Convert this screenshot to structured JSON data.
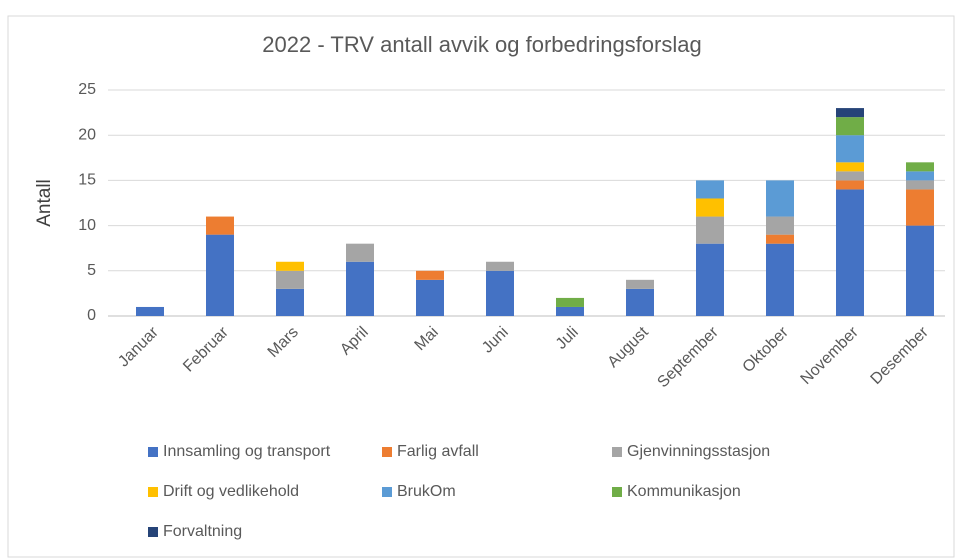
{
  "chart_data": {
    "type": "bar",
    "stacked": true,
    "title": "2022 - TRV antall avvik og forbedringsforslag",
    "y_label": "Antall",
    "categories": [
      "Januar",
      "Februar",
      "Mars",
      "April",
      "Mai",
      "Juni",
      "Juli",
      "August",
      "September",
      "Oktober",
      "November",
      "Desember"
    ],
    "series": [
      {
        "name": "Innsamling og transport",
        "color": "#4472c4",
        "values": [
          1,
          9,
          3,
          6,
          4,
          5,
          1,
          3,
          8,
          8,
          14,
          10
        ]
      },
      {
        "name": "Farlig avfall",
        "color": "#ed7d31",
        "values": [
          0,
          2,
          0,
          0,
          1,
          0,
          0,
          0,
          0,
          1,
          1,
          4
        ]
      },
      {
        "name": "Gjenvinningsstasjon",
        "color": "#a5a5a5",
        "values": [
          0,
          0,
          2,
          2,
          0,
          1,
          0,
          1,
          3,
          2,
          1,
          1
        ]
      },
      {
        "name": "Drift og vedlikehold",
        "color": "#ffc000",
        "values": [
          0,
          0,
          1,
          0,
          0,
          0,
          0,
          0,
          2,
          0,
          1,
          0
        ]
      },
      {
        "name": "BrukOm",
        "color": "#5b9bd5",
        "values": [
          0,
          0,
          0,
          0,
          0,
          0,
          0,
          0,
          2,
          4,
          3,
          1
        ]
      },
      {
        "name": "Kommunikasjon",
        "color": "#70ad47",
        "values": [
          0,
          0,
          0,
          0,
          0,
          0,
          1,
          0,
          0,
          0,
          2,
          1
        ]
      },
      {
        "name": "Forvaltning",
        "color": "#264478",
        "values": [
          0,
          0,
          0,
          0,
          0,
          0,
          0,
          0,
          0,
          0,
          1,
          0
        ]
      }
    ],
    "ylim": [
      0,
      25
    ],
    "yticks": [
      0,
      5,
      10,
      15,
      20,
      25
    ],
    "grid": true,
    "legend": "bottom"
  }
}
